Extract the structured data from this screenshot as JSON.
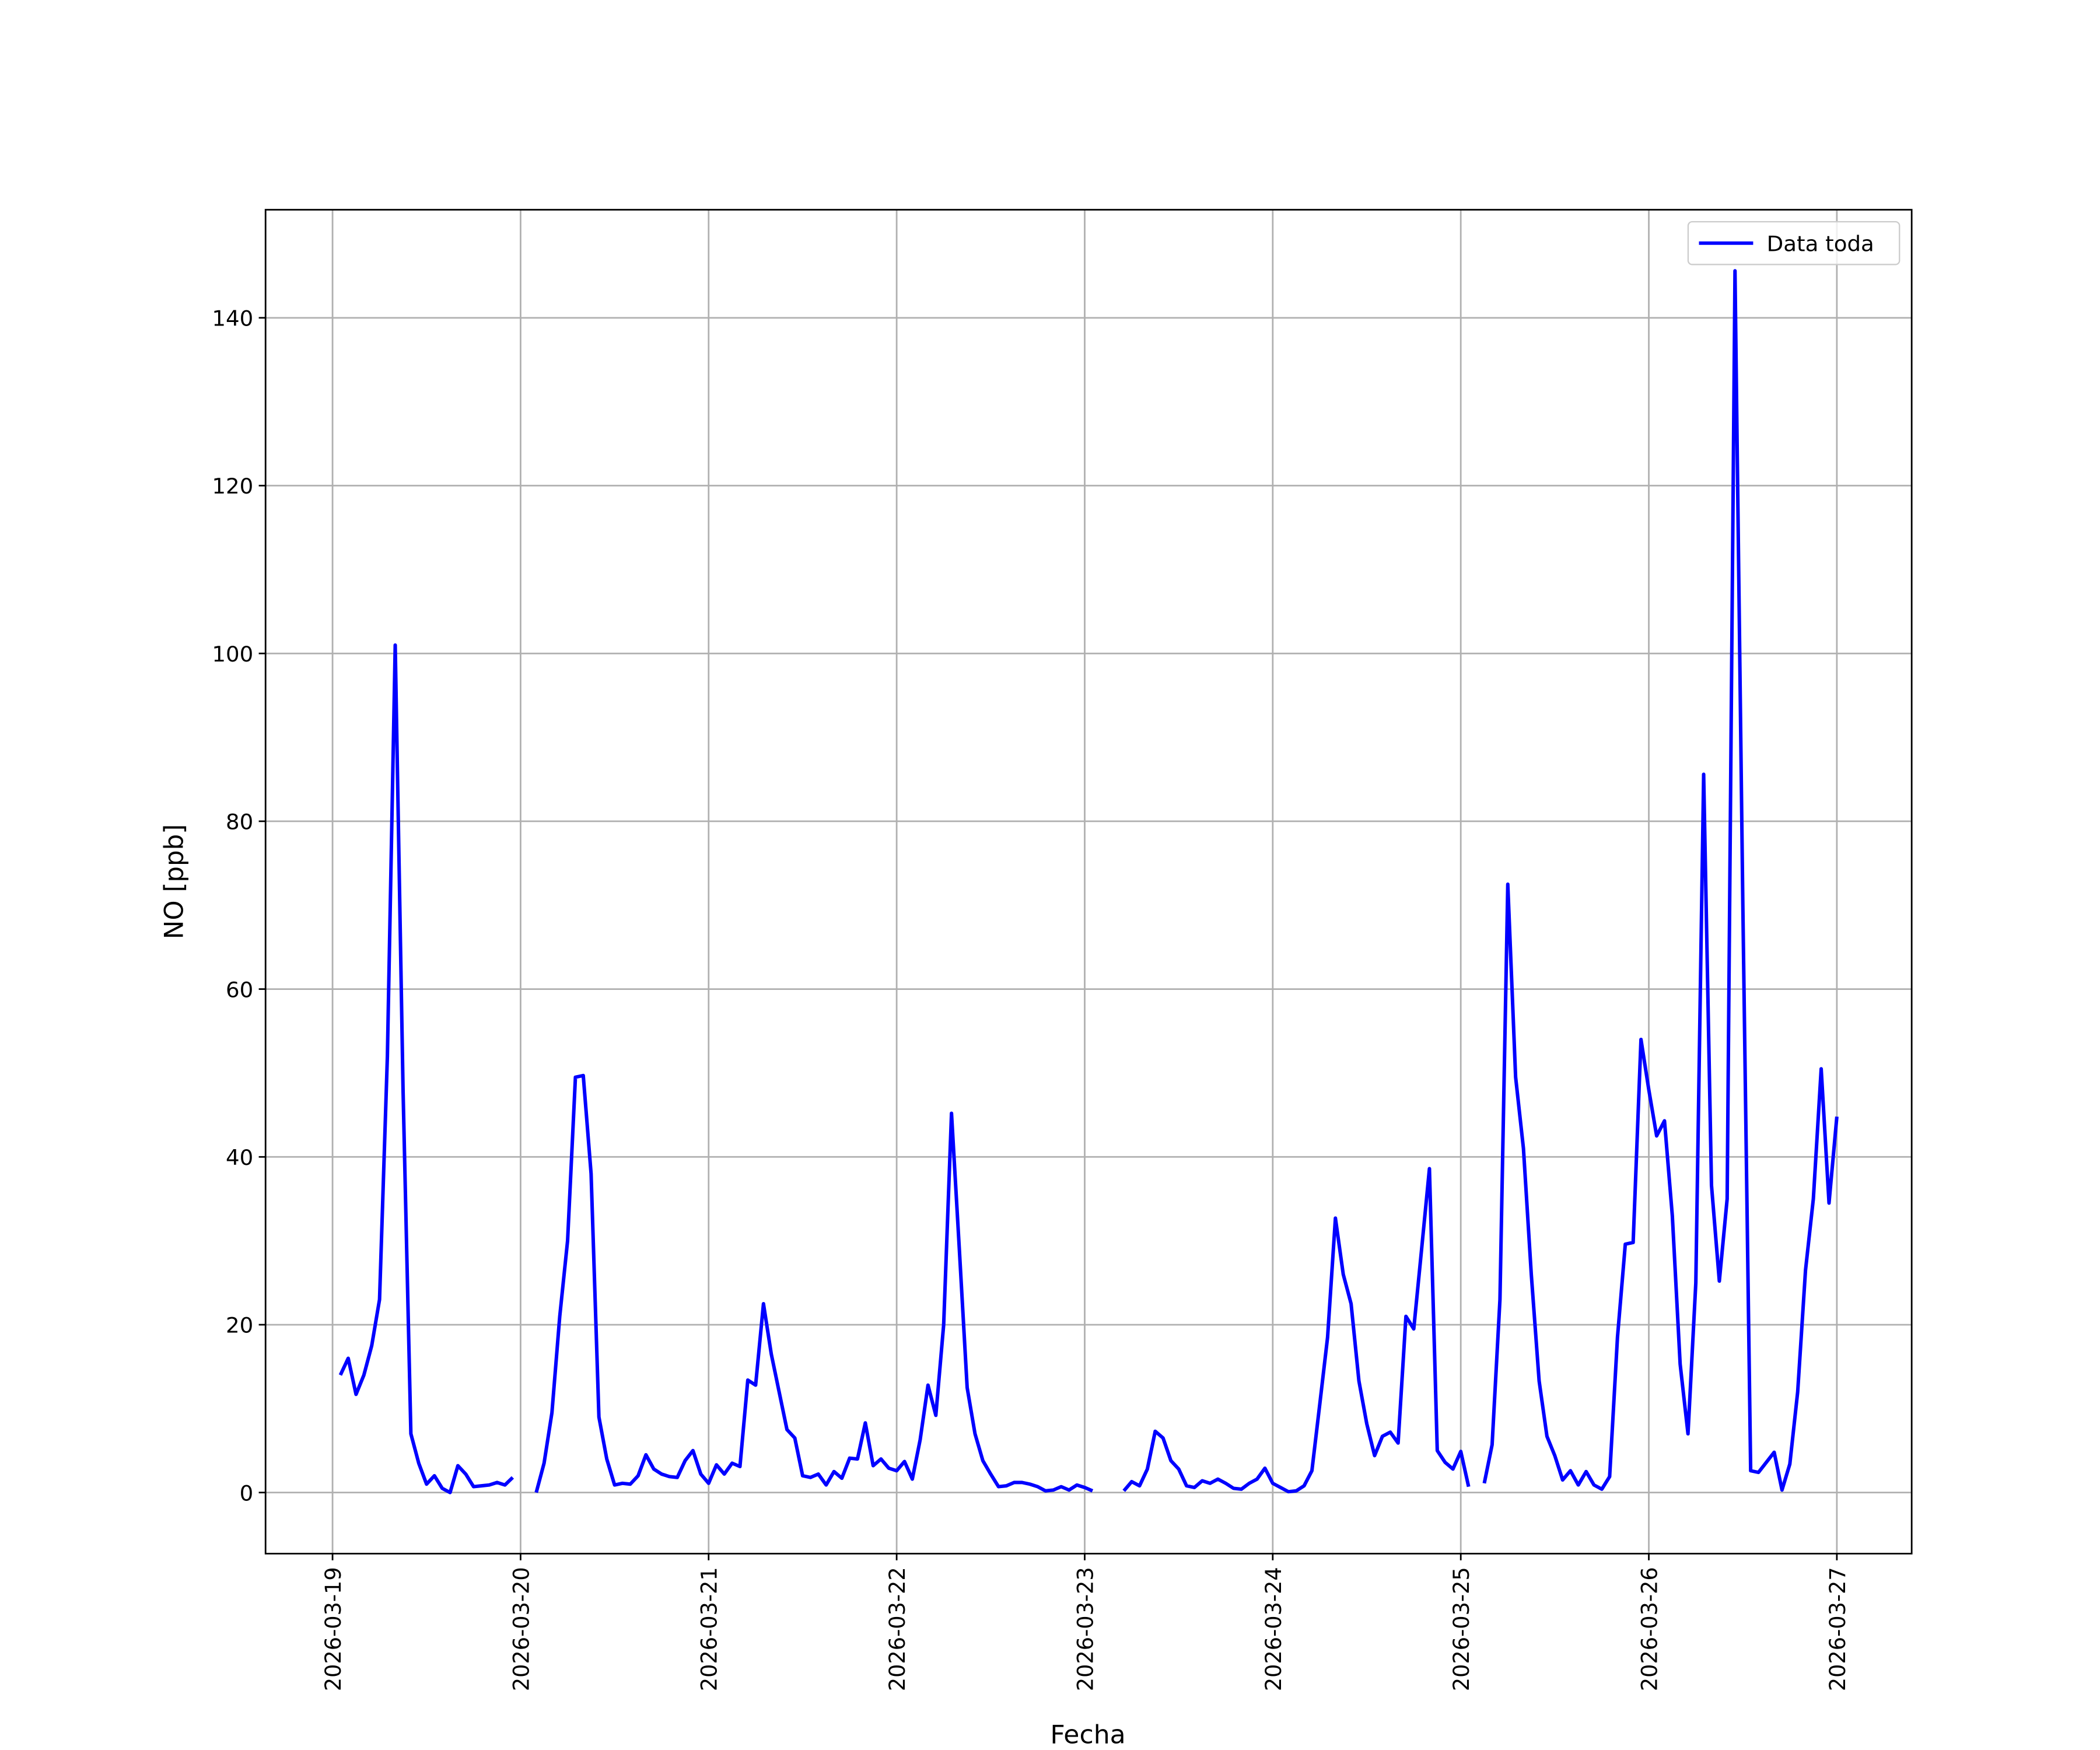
{
  "chart_data": {
    "type": "line",
    "xlabel": "Fecha",
    "ylabel": "NO [ppb]",
    "x": [
      "2026-03-19 01:00",
      "2026-03-19 02:00",
      "2026-03-19 03:00",
      "2026-03-19 04:00",
      "2026-03-19 05:00",
      "2026-03-19 06:00",
      "2026-03-19 07:00",
      "2026-03-19 08:00",
      "2026-03-19 09:00",
      "2026-03-19 10:00",
      "2026-03-19 11:00",
      "2026-03-19 12:00",
      "2026-03-19 13:00",
      "2026-03-19 14:00",
      "2026-03-19 15:00",
      "2026-03-19 16:00",
      "2026-03-19 17:00",
      "2026-03-19 18:00",
      "2026-03-19 19:00",
      "2026-03-19 20:00",
      "2026-03-19 21:00",
      "2026-03-19 22:00",
      "2026-03-19 23:00",
      "2026-03-20 00:00",
      "2026-03-20 01:00",
      "2026-03-20 02:00",
      "2026-03-20 03:00",
      "2026-03-20 04:00",
      "2026-03-20 05:00",
      "2026-03-20 06:00",
      "2026-03-20 07:00",
      "2026-03-20 08:00",
      "2026-03-20 09:00",
      "2026-03-20 10:00",
      "2026-03-20 11:00",
      "2026-03-20 12:00",
      "2026-03-20 13:00",
      "2026-03-20 14:00",
      "2026-03-20 15:00",
      "2026-03-20 16:00",
      "2026-03-20 17:00",
      "2026-03-20 18:00",
      "2026-03-20 19:00",
      "2026-03-20 20:00",
      "2026-03-20 21:00",
      "2026-03-20 22:00",
      "2026-03-20 23:00",
      "2026-03-21 00:00",
      "2026-03-21 01:00",
      "2026-03-21 02:00",
      "2026-03-21 03:00",
      "2026-03-21 04:00",
      "2026-03-21 05:00",
      "2026-03-21 06:00",
      "2026-03-21 07:00",
      "2026-03-21 08:00",
      "2026-03-21 09:00",
      "2026-03-21 10:00",
      "2026-03-21 11:00",
      "2026-03-21 12:00",
      "2026-03-21 13:00",
      "2026-03-21 14:00",
      "2026-03-21 15:00",
      "2026-03-21 16:00",
      "2026-03-21 17:00",
      "2026-03-21 18:00",
      "2026-03-21 19:00",
      "2026-03-21 20:00",
      "2026-03-21 21:00",
      "2026-03-21 22:00",
      "2026-03-21 23:00",
      "2026-03-22 00:00",
      "2026-03-22 01:00",
      "2026-03-22 02:00",
      "2026-03-22 03:00",
      "2026-03-22 04:00",
      "2026-03-22 05:00",
      "2026-03-22 06:00",
      "2026-03-22 07:00",
      "2026-03-22 08:00",
      "2026-03-22 09:00",
      "2026-03-22 10:00",
      "2026-03-22 11:00",
      "2026-03-22 12:00",
      "2026-03-22 13:00",
      "2026-03-22 14:00",
      "2026-03-22 15:00",
      "2026-03-22 16:00",
      "2026-03-22 17:00",
      "2026-03-22 18:00",
      "2026-03-22 19:00",
      "2026-03-22 20:00",
      "2026-03-22 21:00",
      "2026-03-22 22:00",
      "2026-03-22 23:00",
      "2026-03-23 00:00",
      "2026-03-23 01:00",
      "2026-03-23 02:00",
      "2026-03-23 03:00",
      "2026-03-23 04:00",
      "2026-03-23 05:00",
      "2026-03-23 06:00",
      "2026-03-23 07:00",
      "2026-03-23 08:00",
      "2026-03-23 09:00",
      "2026-03-23 10:00",
      "2026-03-23 11:00",
      "2026-03-23 12:00",
      "2026-03-23 13:00",
      "2026-03-23 14:00",
      "2026-03-23 15:00",
      "2026-03-23 16:00",
      "2026-03-23 17:00",
      "2026-03-23 18:00",
      "2026-03-23 19:00",
      "2026-03-23 20:00",
      "2026-03-23 21:00",
      "2026-03-23 22:00",
      "2026-03-23 23:00",
      "2026-03-24 00:00",
      "2026-03-24 01:00",
      "2026-03-24 02:00",
      "2026-03-24 03:00",
      "2026-03-24 04:00",
      "2026-03-24 05:00",
      "2026-03-24 06:00",
      "2026-03-24 07:00",
      "2026-03-24 08:00",
      "2026-03-24 09:00",
      "2026-03-24 10:00",
      "2026-03-24 11:00",
      "2026-03-24 12:00",
      "2026-03-24 13:00",
      "2026-03-24 14:00",
      "2026-03-24 15:00",
      "2026-03-24 16:00",
      "2026-03-24 17:00",
      "2026-03-24 18:00",
      "2026-03-24 19:00",
      "2026-03-24 20:00",
      "2026-03-24 21:00",
      "2026-03-24 22:00",
      "2026-03-24 23:00",
      "2026-03-25 00:00",
      "2026-03-25 01:00",
      "2026-03-25 02:00",
      "2026-03-25 03:00",
      "2026-03-25 04:00",
      "2026-03-25 05:00",
      "2026-03-25 06:00",
      "2026-03-25 07:00",
      "2026-03-25 08:00",
      "2026-03-25 09:00",
      "2026-03-25 10:00",
      "2026-03-25 11:00",
      "2026-03-25 12:00",
      "2026-03-25 13:00",
      "2026-03-25 14:00",
      "2026-03-25 15:00",
      "2026-03-25 16:00",
      "2026-03-25 17:00",
      "2026-03-25 18:00",
      "2026-03-25 19:00",
      "2026-03-25 20:00",
      "2026-03-25 21:00",
      "2026-03-25 22:00",
      "2026-03-25 23:00",
      "2026-03-26 00:00",
      "2026-03-26 01:00",
      "2026-03-26 02:00",
      "2026-03-26 03:00",
      "2026-03-26 04:00",
      "2026-03-26 05:00",
      "2026-03-26 06:00",
      "2026-03-26 07:00",
      "2026-03-26 08:00",
      "2026-03-26 09:00",
      "2026-03-26 10:00",
      "2026-03-26 11:00",
      "2026-03-26 12:00",
      "2026-03-26 13:00",
      "2026-03-26 14:00",
      "2026-03-26 15:00",
      "2026-03-26 16:00",
      "2026-03-26 17:00",
      "2026-03-26 18:00",
      "2026-03-26 19:00",
      "2026-03-26 20:00",
      "2026-03-26 21:00",
      "2026-03-26 22:00",
      "2026-03-26 23:00",
      "2026-03-27 00:00"
    ],
    "series": [
      {
        "name": "Data toda",
        "color": "#0000ff",
        "values": [
          14,
          16,
          11.7,
          14,
          17.5,
          23,
          52,
          101,
          48,
          7,
          3.5,
          1,
          2,
          0.5,
          0,
          3.2,
          2.2,
          0.7,
          0.8,
          0.9,
          1.2,
          0.9,
          1.8,
          null,
          null,
          0,
          3.5,
          9.5,
          21,
          30,
          49.5,
          49.7,
          38,
          9,
          4,
          0.9,
          1.1,
          1,
          2,
          4.5,
          2.8,
          2.2,
          1.9,
          1.8,
          3.8,
          5,
          2.2,
          1.1,
          3.3,
          2.2,
          3.5,
          3.1,
          13.4,
          12.8,
          22.5,
          16.5,
          12,
          7.5,
          6.5,
          2,
          1.8,
          2.2,
          0.9,
          2.5,
          1.7,
          4.1,
          4,
          8.3,
          3.2,
          4,
          2.9,
          2.6,
          3.7,
          1.6,
          6.3,
          12.8,
          9.2,
          20,
          45.2,
          29,
          12.5,
          7,
          3.8,
          2.2,
          0.7,
          0.8,
          1.2,
          1.2,
          1,
          0.7,
          0.2,
          0.3,
          0.7,
          0.3,
          0.9,
          0.6,
          0.2,
          null,
          null,
          null,
          0.2,
          1.3,
          0.8,
          2.8,
          7.3,
          6.5,
          3.8,
          2.8,
          0.8,
          0.6,
          1.4,
          1.1,
          1.6,
          1.1,
          0.5,
          0.4,
          1.1,
          1.6,
          2.9,
          1.1,
          0.6,
          0.1,
          0.2,
          0.8,
          2.6,
          10.5,
          18.5,
          32.7,
          26,
          22.5,
          13.3,
          8.2,
          4.4,
          6.7,
          7.2,
          5.9,
          21,
          19.5,
          29,
          38.6,
          5,
          3.6,
          2.8,
          4.9,
          0.7,
          null,
          1.1,
          5.7,
          23,
          72.5,
          49.5,
          41,
          26,
          13.3,
          6.7,
          4.4,
          1.5,
          2.6,
          0.9,
          2.5,
          0.9,
          0.4,
          1.9,
          18.5,
          29.6,
          29.8,
          54,
          48,
          42.5,
          44.3,
          33,
          15.3,
          7,
          25,
          85.6,
          36.6,
          25.2,
          35,
          145.6,
          70,
          2.6,
          2.4,
          3.6,
          4.8,
          0.3,
          3.4,
          12,
          26.5,
          35,
          50.5,
          34.5,
          44.8
        ]
      }
    ],
    "xlim": [
      "2026-03-18 15:27",
      "2026-03-27 09:33"
    ],
    "xticks": [
      "2026-03-19",
      "2026-03-20",
      "2026-03-21",
      "2026-03-22",
      "2026-03-23",
      "2026-03-24",
      "2026-03-25",
      "2026-03-26",
      "2026-03-27"
    ],
    "ylim": [
      -7.28,
      152.88
    ],
    "yticks": [
      0,
      20,
      40,
      60,
      80,
      100,
      120,
      140
    ],
    "grid": true,
    "legend": "upper right"
  }
}
